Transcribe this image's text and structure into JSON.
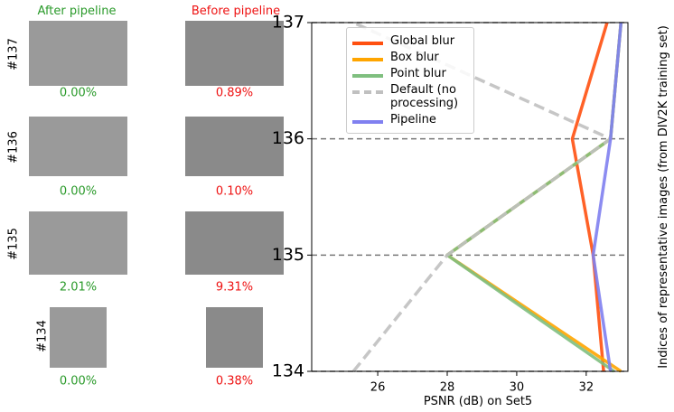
{
  "panel": {
    "after_title": "After pipeline",
    "before_title": "Before pipeline",
    "rows": [
      {
        "label": "#137",
        "after": "0.00%",
        "before": "0.89%"
      },
      {
        "label": "#136",
        "after": "0.00%",
        "before": "0.10%"
      },
      {
        "label": "#135",
        "after": "2.01%",
        "before": "9.31%"
      },
      {
        "label": "#134",
        "after": "0.00%",
        "before": "0.38%"
      }
    ]
  },
  "chart_data": {
    "type": "line",
    "orientation": "horizontal",
    "x_label": "PSNR (dB) on Set5",
    "y_label": "Indices of representative images (from DIV2K training set)",
    "y": [
      134,
      135,
      136,
      137
    ],
    "xlim": [
      24.1,
      33.2
    ],
    "xticks": [
      26,
      28,
      30,
      32
    ],
    "ylim": [
      134,
      137
    ],
    "yticks": [
      134,
      135,
      136,
      137
    ],
    "grid": true,
    "legend": "upper left",
    "series": [
      {
        "name": "Global blur",
        "color": "#ff5010",
        "dash": false,
        "values": [
          32.5,
          32.2,
          31.6,
          32.6
        ]
      },
      {
        "name": "Box blur",
        "color": "#ffa500",
        "dash": false,
        "values": [
          33.0,
          28.0,
          32.7,
          33.0
        ]
      },
      {
        "name": "Point blur",
        "color": "#7fbf7f",
        "dash": false,
        "values": [
          32.8,
          28.0,
          32.7,
          33.0
        ]
      },
      {
        "name": "Default (no processing)",
        "color": "#c0c0c0",
        "dash": true,
        "values": [
          25.3,
          28.0,
          32.7,
          25.3
        ]
      },
      {
        "name": "Pipeline",
        "color": "#8080f0",
        "dash": false,
        "values": [
          32.7,
          32.2,
          32.7,
          33.0
        ]
      }
    ]
  }
}
